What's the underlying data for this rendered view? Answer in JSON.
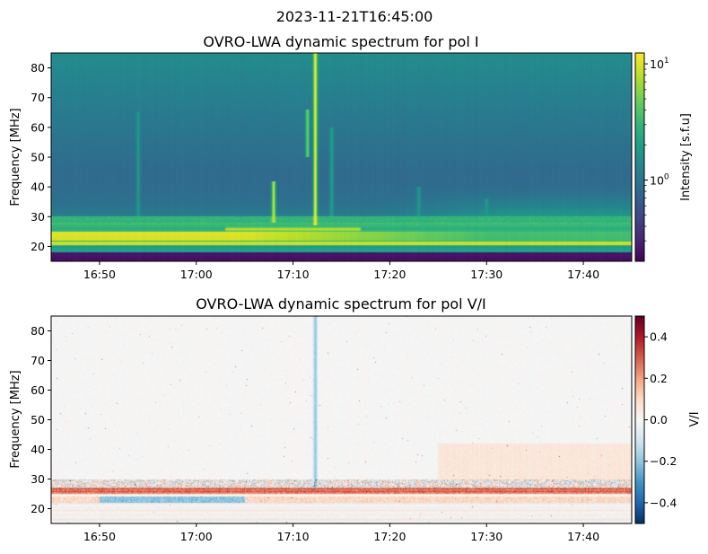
{
  "suptitle": "2023-11-21T16:45:00",
  "chart_data": [
    {
      "type": "heatmap",
      "title": "OVRO-LWA dynamic spectrum for pol I",
      "xlabel": "",
      "ylabel": "Frequency [MHz]",
      "xlim": [
        "16:45",
        "17:45"
      ],
      "ylim": [
        15,
        85
      ],
      "xticks": [
        "16:50",
        "17:00",
        "17:10",
        "17:20",
        "17:30",
        "17:40"
      ],
      "yticks": [
        20,
        30,
        40,
        50,
        60,
        70,
        80
      ],
      "colormap": "viridis",
      "color_scale": "log",
      "clim": [
        0.2,
        12.4
      ],
      "colorbar_label": "Intensity [s.f.u]",
      "colorbar_ticks": [
        {
          "value": 10,
          "label": "10",
          "exp": "1"
        },
        {
          "value": 1,
          "label": "10",
          "exp": "0"
        }
      ],
      "features": {
        "bands_MHz": [
          {
            "from": 15,
            "to": 18,
            "intensity": 0.25
          },
          {
            "from": 18,
            "to": 20,
            "intensity": 2
          },
          {
            "from": 20.3,
            "to": 21.3,
            "intensity": 9
          },
          {
            "from": 22,
            "to": 25,
            "intensity_start": 10,
            "intensity_end": 3.5
          },
          {
            "from": 25,
            "to": 30,
            "intensity": 3
          }
        ],
        "bursts": [
          {
            "time": "16:54",
            "fmin": 28,
            "fmax": 65,
            "intensity": 1.8
          },
          {
            "time": "17:08",
            "fmin": 28,
            "fmax": 42,
            "intensity": 9
          },
          {
            "time": "17:11.5",
            "fmin": 50,
            "fmax": 66,
            "intensity": 5
          },
          {
            "time": "17:12.3",
            "fmin": 27,
            "fmax": 85,
            "intensity": 12
          },
          {
            "time": "17:14",
            "fmin": 28,
            "fmax": 60,
            "intensity": 2
          },
          {
            "time": "17:23",
            "fmin": 30,
            "fmax": 40,
            "intensity": 1.8
          },
          {
            "time": "17:30",
            "fmin": 28,
            "fmax": 36,
            "intensity": 1.8
          }
        ]
      }
    },
    {
      "type": "heatmap",
      "title": "OVRO-LWA dynamic spectrum for pol V/I",
      "xlabel": "",
      "ylabel": "Frequency [MHz]",
      "xlim": [
        "16:45",
        "17:45"
      ],
      "ylim": [
        15,
        85
      ],
      "xticks": [
        "16:50",
        "17:00",
        "17:10",
        "17:20",
        "17:30",
        "17:40"
      ],
      "yticks": [
        20,
        30,
        40,
        50,
        60,
        70,
        80
      ],
      "colormap": "RdBu_r",
      "color_scale": "linear",
      "clim": [
        -0.5,
        0.5
      ],
      "colorbar_label": "V/I",
      "colorbar_ticks": [
        {
          "value": 0.4,
          "label": "0.4"
        },
        {
          "value": 0.2,
          "label": "0.2"
        },
        {
          "value": 0.0,
          "label": "0.0"
        },
        {
          "value": -0.2,
          "label": "−0.2"
        },
        {
          "value": -0.4,
          "label": "−0.4"
        }
      ],
      "features": {
        "bands_MHz": [
          {
            "from": 22,
            "to": 24,
            "value": -0.2
          },
          {
            "from": 25,
            "to": 27,
            "value": 0.3
          },
          {
            "from": 27,
            "to": 30,
            "value_noise": 0.3
          }
        ],
        "bursts": [
          {
            "time": "17:12.3",
            "fmin": 27,
            "fmax": 85,
            "value": -0.2
          }
        ]
      }
    }
  ]
}
